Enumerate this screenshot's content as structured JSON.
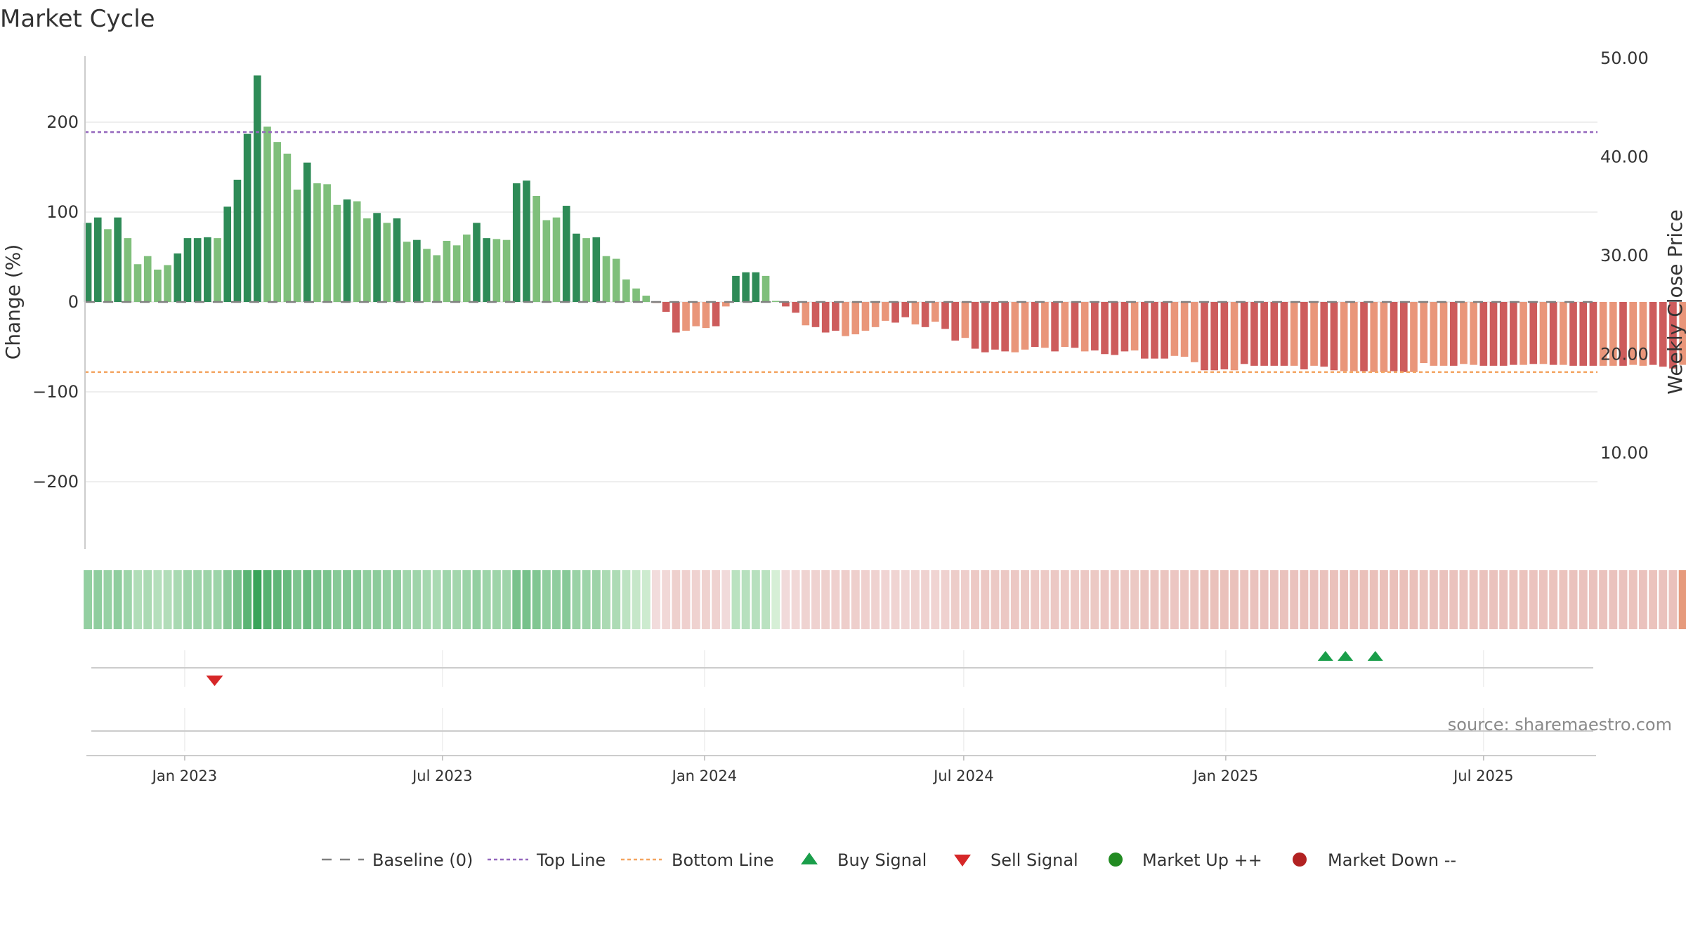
{
  "chart_data": {
    "type": "bar",
    "title": "Market Cycle",
    "ylabel_left": "Change (%)",
    "ylabel_right": "Weekly Close Price",
    "ylim_left": [
      -275,
      275
    ],
    "left_ticks": [
      200,
      100,
      0,
      -100,
      -200
    ],
    "left_tick_labels": [
      "200",
      "100",
      "0",
      "−100",
      "−200"
    ],
    "right_ticks": [
      50,
      40,
      30,
      20,
      10
    ],
    "right_tick_labels": [
      "50.00",
      "40.00",
      "30.00",
      "20.00",
      "10.00"
    ],
    "top_line": 189,
    "bottom_line": -78,
    "baseline": 0,
    "x_range": [
      "2022-10-23",
      "2025-09-19"
    ],
    "x_ticks": [
      {
        "date": "2023-01-01",
        "label": "Jan 2023"
      },
      {
        "date": "2023-07-01",
        "label": "Jul 2023"
      },
      {
        "date": "2024-01-01",
        "label": "Jan 2024"
      },
      {
        "date": "2024-07-01",
        "label": "Jul 2024"
      },
      {
        "date": "2025-01-01",
        "label": "Jan 2025"
      },
      {
        "date": "2025-07-01",
        "label": "Jul 2025"
      }
    ],
    "start_date": "2022-10-25",
    "values": [
      88,
      94,
      81,
      94,
      71,
      42,
      51,
      36,
      41,
      54,
      71,
      71,
      72,
      71,
      106,
      136,
      187,
      252,
      195,
      178,
      165,
      125,
      155,
      132,
      131,
      108,
      114,
      112,
      93,
      99,
      88,
      93,
      67,
      69,
      59,
      52,
      68,
      63,
      75,
      88,
      71,
      70,
      69,
      132,
      135,
      118,
      91,
      94,
      107,
      76,
      71,
      72,
      51,
      48,
      25,
      15,
      7,
      -1,
      -11,
      -34,
      -32,
      -27,
      -29,
      -27,
      -5,
      29,
      33,
      33,
      29,
      0,
      -5,
      -12,
      -26,
      -28,
      -34,
      -32,
      -38,
      -36,
      -32,
      -28,
      -21,
      -23,
      -17,
      -25,
      -28,
      -22,
      -30,
      -43,
      -40,
      -52,
      -56,
      -53,
      -55,
      -56,
      -53,
      -50,
      -51,
      -55,
      -50,
      -51,
      -55,
      -54,
      -58,
      -59,
      -55,
      -54,
      -63,
      -63,
      -63,
      -60,
      -61,
      -67,
      -76,
      -76,
      -75,
      -76,
      -69,
      -71,
      -71,
      -71,
      -71,
      -71,
      -75,
      -71,
      -72,
      -76,
      -77,
      -77,
      -77,
      -78,
      -78,
      -77,
      -78,
      -78,
      -68,
      -71,
      -71,
      -71,
      -69,
      -70,
      -71,
      -71,
      -71,
      -70,
      -70,
      -69,
      -69,
      -70,
      -70,
      -71,
      -71,
      -71,
      -71,
      -71,
      -71,
      -70,
      -71,
      -70,
      -72,
      -74,
      -70
    ],
    "strong_indices": [
      0,
      1,
      3,
      9,
      10,
      11,
      12,
      14,
      15,
      16,
      17,
      22,
      26,
      29,
      31,
      33,
      39,
      40,
      43,
      44,
      48,
      49,
      51,
      58,
      59,
      63,
      65,
      66,
      67,
      70,
      71,
      73,
      74,
      75,
      81,
      82,
      84,
      86,
      87,
      89,
      90,
      91,
      92,
      95,
      97,
      99,
      101,
      102,
      103,
      104,
      106,
      107,
      108,
      112,
      113,
      114,
      116,
      117,
      118,
      119,
      120,
      122,
      124,
      125,
      128,
      131,
      132,
      137,
      140,
      141,
      142,
      143,
      145,
      147,
      149,
      150,
      151,
      154,
      157,
      158,
      159
    ],
    "buy_signals": [
      "2025-03-12",
      "2025-03-26",
      "2025-04-16"
    ],
    "sell_signals": [
      "2023-01-22"
    ],
    "legend": [
      {
        "label": "Baseline (0)",
        "kind": "dash-gray"
      },
      {
        "label": "Top Line",
        "kind": "dot-purple"
      },
      {
        "label": "Bottom Line",
        "kind": "dot-orange"
      },
      {
        "label": "Buy Signal",
        "kind": "triangle-up"
      },
      {
        "label": "Sell Signal",
        "kind": "triangle-down"
      },
      {
        "label": "Market Up ++",
        "kind": "circle-green"
      },
      {
        "label": "Market Down --",
        "kind": "circle-red"
      }
    ],
    "source": "source: sharemaestro.com",
    "colors": {
      "up_strong": "#2e8b57",
      "up_weak": "#7fbf7b",
      "down_strong": "#cd5c5c",
      "down_weak": "#e9967a",
      "top_line": "#9467bd",
      "bottom_line": "#f4a460",
      "baseline": "#808080",
      "buy": "#1a9e4a",
      "sell": "#d62728",
      "market_up": "#228b22",
      "market_down": "#b22222"
    }
  }
}
